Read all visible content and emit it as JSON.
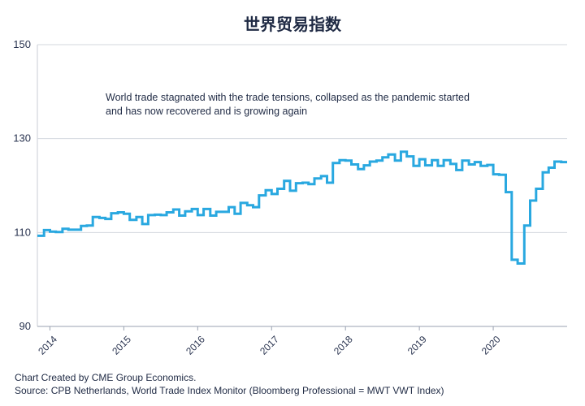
{
  "chart_data": {
    "type": "line",
    "title": "世界贸易指数",
    "xlabel": "",
    "ylabel": "",
    "ylim": [
      90,
      150
    ],
    "yticks": [
      90,
      110,
      130,
      150
    ],
    "xlim": [
      2013.83,
      2021.0
    ],
    "xticks": [
      {
        "label": "2014",
        "x": 2014
      },
      {
        "label": "2015",
        "x": 2015
      },
      {
        "label": "2016",
        "x": 2016
      },
      {
        "label": "2017",
        "x": 2017
      },
      {
        "label": "2018",
        "x": 2018
      },
      {
        "label": "2019",
        "x": 2019
      },
      {
        "label": "2020",
        "x": 2020
      }
    ],
    "grid": "horizontal",
    "line_style": "step",
    "color": "#29a8e0",
    "annotation": [
      "World trade stagnated with the trade tensions, collapsed as the pandemic started",
      "and has now recovered and is growing again"
    ],
    "series": [
      {
        "x": [
          2013.83,
          2013.92,
          2014.0,
          2014.08,
          2014.17,
          2014.25,
          2014.33,
          2014.42,
          2014.5,
          2014.58,
          2014.67,
          2014.75,
          2014.83,
          2014.92,
          2015.0,
          2015.08,
          2015.17,
          2015.25,
          2015.33,
          2015.42,
          2015.5,
          2015.58,
          2015.67,
          2015.75,
          2015.83,
          2015.92,
          2016.0,
          2016.08,
          2016.17,
          2016.25,
          2016.33,
          2016.42,
          2016.5,
          2016.58,
          2016.67,
          2016.75,
          2016.83,
          2016.92,
          2017.0,
          2017.08,
          2017.17,
          2017.25,
          2017.33,
          2017.42,
          2017.5,
          2017.58,
          2017.67,
          2017.75,
          2017.83,
          2017.92,
          2018.0,
          2018.08,
          2018.17,
          2018.25,
          2018.33,
          2018.42,
          2018.5,
          2018.58,
          2018.67,
          2018.75,
          2018.83,
          2018.92,
          2019.0,
          2019.08,
          2019.17,
          2019.25,
          2019.33,
          2019.42,
          2019.5,
          2019.58,
          2019.67,
          2019.75,
          2019.83,
          2019.92,
          2020.0,
          2020.08,
          2020.17,
          2020.25,
          2020.33,
          2020.42,
          2020.5,
          2020.58,
          2020.67,
          2020.75,
          2020.83,
          2020.92
        ],
        "values": [
          109.3,
          110.5,
          110.2,
          110.1,
          110.8,
          110.6,
          110.6,
          111.4,
          111.5,
          113.3,
          113.1,
          112.9,
          114.1,
          114.3,
          114.0,
          112.7,
          113.3,
          111.8,
          113.7,
          113.8,
          113.7,
          114.3,
          114.9,
          113.6,
          114.5,
          115.0,
          113.7,
          115.0,
          113.6,
          114.4,
          114.4,
          115.4,
          114.0,
          116.3,
          115.8,
          115.4,
          117.9,
          119.0,
          118.2,
          119.3,
          121.0,
          118.9,
          120.5,
          120.6,
          120.3,
          121.5,
          122.0,
          120.6,
          124.8,
          125.4,
          125.3,
          124.5,
          123.5,
          124.3,
          125.1,
          125.3,
          126.0,
          126.6,
          125.3,
          127.2,
          126.2,
          124.2,
          125.6,
          124.3,
          125.4,
          124.2,
          125.4,
          124.6,
          123.3,
          125.3,
          124.5,
          125.0,
          124.2,
          124.4,
          122.4,
          122.3,
          118.6,
          104.2,
          103.4,
          111.5,
          116.8,
          119.3,
          122.8,
          123.8,
          125.1,
          125.0
        ]
      }
    ]
  },
  "footer": {
    "line1": "Chart Created by CME Group Economics.",
    "line2": "Source: CPB Netherlands, World Trade Index Monitor (Bloomberg Professional = MWT VWT Index)"
  }
}
